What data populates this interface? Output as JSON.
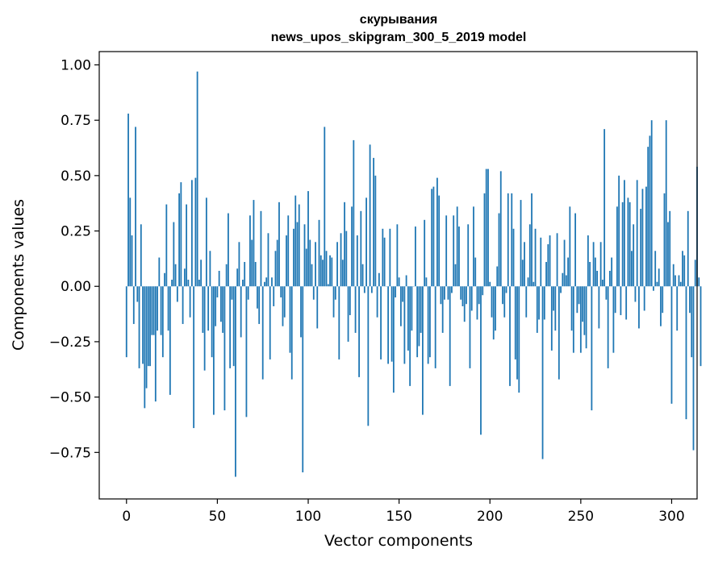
{
  "chart_data": {
    "type": "bar",
    "title_line1": "скурывания",
    "title_line2": "news_upos_skipgram_300_5_2019 model",
    "xlabel": "Vector components",
    "ylabel": "Components values",
    "xlim": [
      -15,
      314
    ],
    "ylim": [
      -0.96,
      1.06
    ],
    "xticks": [
      0,
      50,
      100,
      150,
      200,
      250,
      300
    ],
    "xtick_labels": [
      "0",
      "50",
      "100",
      "150",
      "200",
      "250",
      "300"
    ],
    "yticks": [
      -0.75,
      -0.5,
      -0.25,
      0.0,
      0.25,
      0.5,
      0.75,
      1.0
    ],
    "ytick_labels": [
      "−0.75",
      "−0.50",
      "−0.25",
      "0.00",
      "0.25",
      "0.50",
      "0.75",
      "1.00"
    ],
    "bar_color": "#1f77b4",
    "values": [
      -0.32,
      0.78,
      0.4,
      0.23,
      -0.17,
      0.72,
      -0.07,
      -0.37,
      0.28,
      -0.35,
      -0.55,
      -0.46,
      -0.36,
      -0.36,
      -0.22,
      -0.22,
      -0.52,
      -0.2,
      0.13,
      -0.22,
      -0.32,
      0.06,
      0.37,
      -0.2,
      -0.49,
      0.03,
      0.29,
      0.1,
      -0.07,
      0.42,
      0.47,
      -0.17,
      0.08,
      0.37,
      0.03,
      -0.14,
      0.48,
      -0.64,
      0.49,
      0.97,
      0.03,
      0.12,
      -0.21,
      -0.38,
      0.4,
      -0.2,
      0.16,
      -0.32,
      -0.58,
      -0.18,
      -0.05,
      0.07,
      -0.16,
      -0.21,
      -0.56,
      0.1,
      0.33,
      -0.37,
      -0.06,
      -0.36,
      -0.86,
      0.08,
      0.2,
      -0.23,
      0.03,
      0.11,
      -0.59,
      -0.06,
      0.32,
      0.21,
      0.39,
      0.11,
      -0.1,
      -0.17,
      0.34,
      -0.42,
      0.02,
      0.04,
      0.24,
      -0.33,
      0.04,
      -0.09,
      0.16,
      0.21,
      0.38,
      -0.05,
      -0.18,
      -0.14,
      0.23,
      0.32,
      -0.3,
      -0.42,
      0.26,
      0.41,
      0.29,
      0.37,
      -0.23,
      -0.84,
      0.28,
      0.17,
      0.43,
      0.21,
      0.1,
      -0.06,
      0.2,
      -0.19,
      0.3,
      0.14,
      0.12,
      0.72,
      0.16,
      0.01,
      0.14,
      0.13,
      -0.14,
      -0.06,
      0.2,
      -0.33,
      0.24,
      0.12,
      0.38,
      0.25,
      -0.25,
      -0.13,
      0.36,
      0.66,
      -0.21,
      0.23,
      -0.41,
      0.34,
      0.1,
      -0.03,
      0.4,
      -0.63,
      0.64,
      -0.03,
      0.58,
      0.5,
      -0.14,
      0.06,
      -0.33,
      0.26,
      0.22,
      0.0,
      -0.35,
      0.26,
      -0.34,
      -0.48,
      -0.05,
      0.28,
      0.04,
      -0.18,
      -0.07,
      -0.35,
      0.05,
      -0.29,
      -0.45,
      -0.2,
      0.0,
      0.27,
      -0.32,
      -0.27,
      -0.21,
      -0.58,
      0.3,
      0.04,
      -0.35,
      -0.32,
      0.44,
      0.45,
      -0.37,
      0.49,
      0.41,
      -0.08,
      -0.21,
      -0.06,
      0.32,
      -0.06,
      -0.45,
      -0.03,
      0.32,
      0.1,
      0.36,
      0.27,
      -0.06,
      -0.09,
      -0.16,
      -0.08,
      0.28,
      -0.37,
      -0.11,
      0.36,
      0.13,
      -0.15,
      -0.08,
      -0.67,
      -0.04,
      0.42,
      0.53,
      0.53,
      0.02,
      -0.14,
      -0.24,
      -0.2,
      0.09,
      0.33,
      0.52,
      -0.08,
      -0.14,
      -0.03,
      0.42,
      -0.45,
      0.42,
      0.26,
      -0.33,
      -0.42,
      -0.48,
      0.39,
      0.12,
      0.2,
      -0.14,
      0.04,
      0.28,
      0.42,
      0.02,
      0.26,
      -0.21,
      -0.15,
      0.22,
      -0.78,
      -0.15,
      0.11,
      0.19,
      0.23,
      -0.29,
      -0.11,
      -0.2,
      0.24,
      -0.42,
      -0.03,
      0.06,
      0.21,
      0.05,
      0.13,
      0.36,
      -0.2,
      -0.3,
      0.33,
      -0.12,
      -0.08,
      -0.3,
      -0.16,
      -0.22,
      -0.28,
      0.23,
      0.11,
      -0.56,
      0.2,
      0.13,
      0.07,
      -0.19,
      0.2,
      0.03,
      0.71,
      -0.06,
      -0.37,
      0.07,
      0.13,
      -0.3,
      -0.12,
      0.36,
      0.5,
      -0.13,
      0.38,
      0.48,
      -0.15,
      0.4,
      0.38,
      0.16,
      0.28,
      -0.07,
      0.48,
      -0.19,
      0.35,
      0.44,
      -0.11,
      0.45,
      0.63,
      0.68,
      0.75,
      -0.02,
      0.16,
      0.02,
      0.08,
      -0.18,
      -0.12,
      0.42,
      0.75,
      0.29,
      0.34,
      -0.53,
      0.1,
      0.05,
      -0.2,
      0.05,
      0.02,
      0.16,
      0.14,
      -0.6,
      0.34,
      -0.12,
      -0.32,
      -0.74,
      0.12,
      0.54,
      0.04,
      -0.36
    ]
  }
}
